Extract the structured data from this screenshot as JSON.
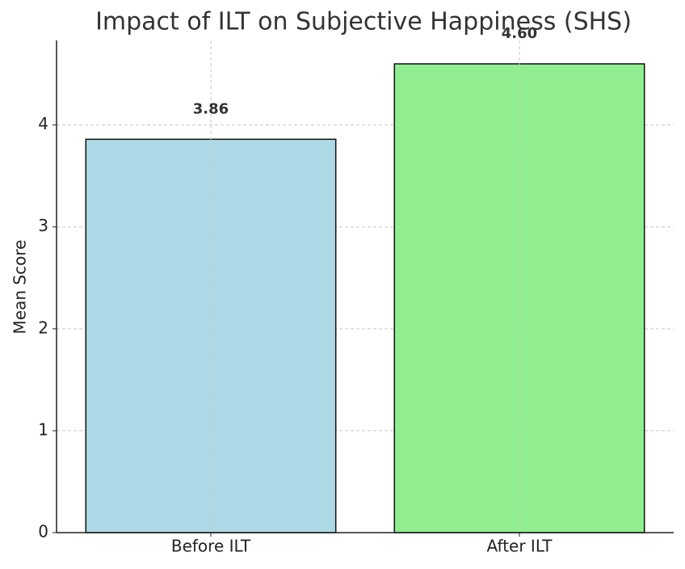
{
  "chart_data": {
    "type": "bar",
    "title": "Impact of ILT on Subjective Happiness (SHS)",
    "y_label": "Mean Score",
    "categories": [
      "Before ILT",
      "After ILT"
    ],
    "values": [
      3.86,
      4.6
    ],
    "value_labels": [
      "3.86",
      "4.60"
    ],
    "colors": [
      "#add8e6",
      "#90ee90"
    ],
    "ylim": [
      0,
      4.83
    ],
    "yticks": [
      0,
      1,
      2,
      3,
      4
    ],
    "grid": true
  }
}
